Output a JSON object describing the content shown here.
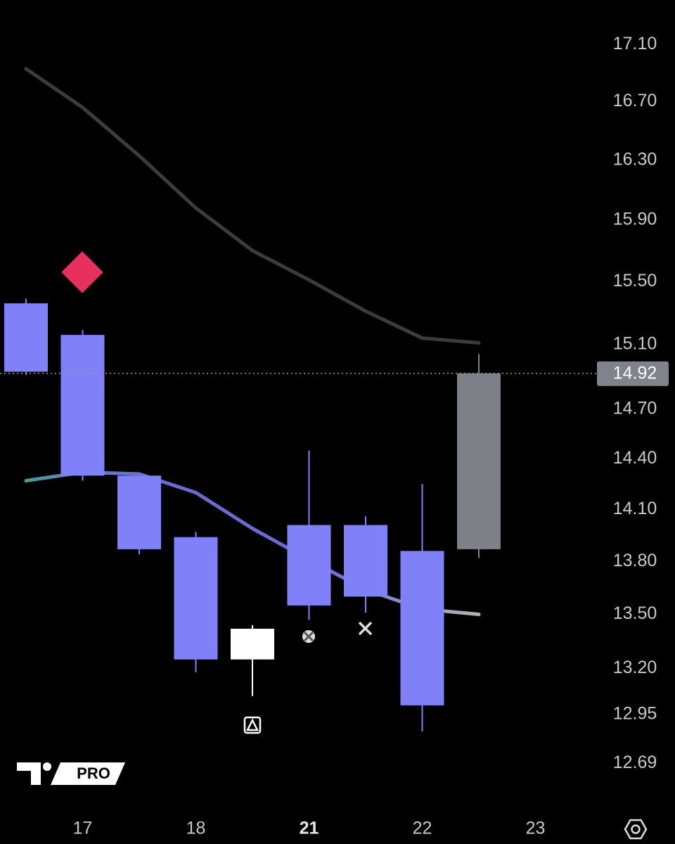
{
  "chart_data": {
    "type": "candlestick",
    "log_scale": true,
    "categories": [
      null,
      "17",
      null,
      "18",
      null,
      "21",
      null,
      "22",
      null,
      "23"
    ],
    "open": [
      15.36,
      15.16,
      14.3,
      13.94,
      13.25,
      13.55,
      13.6,
      13.86,
      13.87,
      null
    ],
    "high": [
      15.39,
      15.19,
      14.3,
      13.97,
      13.44,
      14.45,
      14.06,
      14.25,
      15.04,
      null
    ],
    "low": [
      14.91,
      14.27,
      13.84,
      13.18,
      13.05,
      13.47,
      13.51,
      12.86,
      13.82,
      null
    ],
    "close": [
      14.93,
      14.3,
      13.87,
      13.25,
      13.42,
      14.01,
      14.01,
      13.0,
      14.92,
      null
    ],
    "colors": [
      "#8080f8",
      "#8080f8",
      "#8080f8",
      "#8080f8",
      "#ffffff",
      "#8080f8",
      "#8080f8",
      "#8080f8",
      "#7d8087",
      null
    ],
    "lines": [
      {
        "colors": [
          "#3c3c3c"
        ],
        "values": [
          16.93,
          16.66,
          16.33,
          15.98,
          15.7,
          15.51,
          15.31,
          15.14,
          15.11,
          null
        ]
      },
      {
        "colors": [
          "#4aa090",
          "#6a6ad8",
          "#6a6ad8",
          "#b4b4b4"
        ],
        "values": [
          14.27,
          14.32,
          14.31,
          14.2,
          13.99,
          13.81,
          13.64,
          13.53,
          13.5,
          null
        ]
      }
    ],
    "last_price": 14.92,
    "ylim": [
      12.49,
      17.42
    ],
    "yticks": [
      {
        "value": 17.1,
        "label": "17.10"
      },
      {
        "value": 16.7,
        "label": "16.70"
      },
      {
        "value": 16.3,
        "label": "16.30"
      },
      {
        "value": 15.9,
        "label": "15.90"
      },
      {
        "value": 15.5,
        "label": "15.50"
      },
      {
        "value": 15.1,
        "label": "15.10"
      },
      {
        "value": 14.7,
        "label": "14.70"
      },
      {
        "value": 14.4,
        "label": "14.40"
      },
      {
        "value": 14.1,
        "label": "14.10"
      },
      {
        "value": 13.8,
        "label": "13.80"
      },
      {
        "value": 13.5,
        "label": "13.50"
      },
      {
        "value": 13.2,
        "label": "13.20"
      },
      12.95,
      12.69
    ],
    "watermark": "PRO"
  }
}
